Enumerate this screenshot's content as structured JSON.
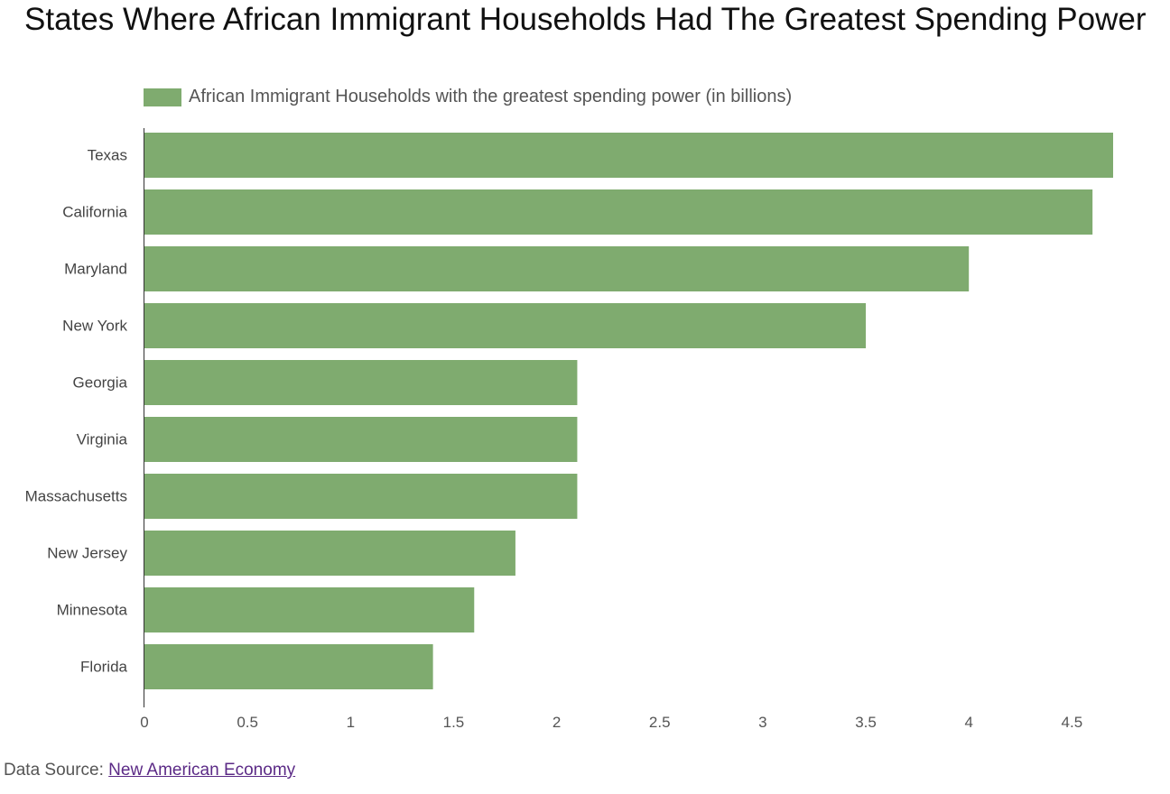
{
  "chart_data": {
    "type": "bar",
    "orientation": "horizontal",
    "title": "States Where African Immigrant Households Had The Greatest Spending Power",
    "categories": [
      "Texas",
      "California",
      "Maryland",
      "New York",
      "Georgia",
      "Virginia",
      "Massachusetts",
      "New Jersey",
      "Minnesota",
      "Florida"
    ],
    "series": [
      {
        "name": "African Immigrant Households with the greatest spending power (in billions)",
        "values": [
          4.7,
          4.6,
          4.0,
          3.5,
          2.1,
          2.1,
          2.1,
          1.8,
          1.6,
          1.4
        ],
        "color": "#7fab6f"
      }
    ],
    "xlim": [
      0,
      4.7
    ],
    "xticks": [
      "0",
      "0.5",
      "1",
      "1.5",
      "2",
      "2.5",
      "3",
      "3.5",
      "4",
      "4.5"
    ],
    "xlabel": "",
    "ylabel": "",
    "grid": false,
    "legend_position": "top-left"
  },
  "source": {
    "prefix": "Data Source: ",
    "link_text": "New American Economy"
  },
  "colors": {
    "bar": "#7fab6f",
    "axis": "#333333"
  }
}
